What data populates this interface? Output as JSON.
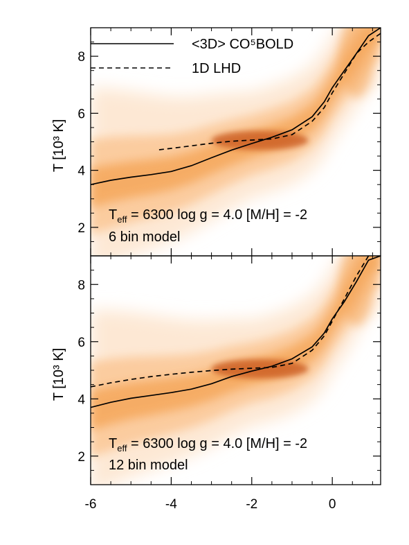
{
  "chart_data": [
    {
      "type": "line",
      "panel": "top",
      "ylabel": "T [10³ K]",
      "xlim": [
        -6,
        1.2
      ],
      "ylim": [
        1,
        9
      ],
      "yticks": [
        2,
        4,
        6,
        8
      ],
      "legend": {
        "placement": "top-right",
        "entries": [
          {
            "label": "<3D> CO⁵BOLD",
            "style": "solid"
          },
          {
            "label": "1D LHD",
            "style": "dashed"
          }
        ]
      },
      "annotation": {
        "line1": "T",
        "line1_sub": "eff",
        "line1_rest": " = 6300 log g = 4.0 [M/H] = -2",
        "line2": "6 bin model"
      },
      "series": [
        {
          "name": "<3D> CO⁵BOLD",
          "style": "solid",
          "x": [
            -6,
            -5.5,
            -5,
            -4.5,
            -4,
            -3.5,
            -3,
            -2.5,
            -2,
            -1.5,
            -1,
            -0.5,
            -0.2,
            0,
            0.3,
            0.6,
            0.9,
            1.2
          ],
          "y": [
            3.5,
            3.65,
            3.76,
            3.85,
            3.96,
            4.16,
            4.44,
            4.71,
            4.94,
            5.16,
            5.42,
            5.88,
            6.4,
            6.9,
            7.5,
            8.1,
            8.72,
            9.0
          ]
        },
        {
          "name": "1D LHD",
          "style": "dashed",
          "x": [
            -4.3,
            -4,
            -3.5,
            -3,
            -2.5,
            -2,
            -1.5,
            -1,
            -0.5,
            -0.2,
            0,
            0.3,
            0.6,
            0.9,
            1.2
          ],
          "y": [
            4.72,
            4.77,
            4.86,
            4.95,
            5.02,
            5.06,
            5.1,
            5.25,
            5.72,
            6.2,
            6.72,
            7.4,
            8.1,
            8.5,
            8.8
          ]
        }
      ]
    },
    {
      "type": "line",
      "panel": "bottom",
      "ylabel": "T [10³ K]",
      "xlim": [
        -6,
        1.2
      ],
      "ylim": [
        1,
        9
      ],
      "xticks": [
        -6,
        -4,
        -2,
        0
      ],
      "yticks": [
        2,
        4,
        6,
        8
      ],
      "annotation": {
        "line1": "T",
        "line1_sub": "eff",
        "line1_rest": " = 6300 log g = 4.0 [M/H] = -2",
        "line2": "12 bin model"
      },
      "series": [
        {
          "name": "<3D> CO⁵BOLD",
          "style": "solid",
          "x": [
            -6,
            -5.5,
            -5,
            -4.5,
            -4,
            -3.5,
            -3,
            -2.5,
            -2,
            -1.5,
            -1,
            -0.5,
            -0.2,
            0,
            0.3,
            0.6,
            0.9,
            1.2
          ],
          "y": [
            3.7,
            3.88,
            4.02,
            4.12,
            4.22,
            4.34,
            4.53,
            4.78,
            4.97,
            5.14,
            5.4,
            5.82,
            6.3,
            6.8,
            7.4,
            8.1,
            8.85,
            9.0
          ]
        },
        {
          "name": "1D LHD",
          "style": "dashed",
          "x": [
            -6,
            -5.5,
            -5,
            -4.5,
            -4,
            -3.5,
            -3,
            -2.5,
            -2,
            -1.5,
            -1,
            -0.5,
            -0.2,
            0,
            0.3,
            0.6,
            0.9
          ],
          "y": [
            4.42,
            4.56,
            4.68,
            4.78,
            4.86,
            4.93,
            4.99,
            5.04,
            5.07,
            5.1,
            5.24,
            5.7,
            6.2,
            6.72,
            7.5,
            8.3,
            9.0
          ]
        }
      ]
    }
  ],
  "colors": {
    "density_light": "#fde8d4",
    "density_mid": "#f5a75c",
    "density_dark": "#c8571a",
    "line": "#000000"
  }
}
